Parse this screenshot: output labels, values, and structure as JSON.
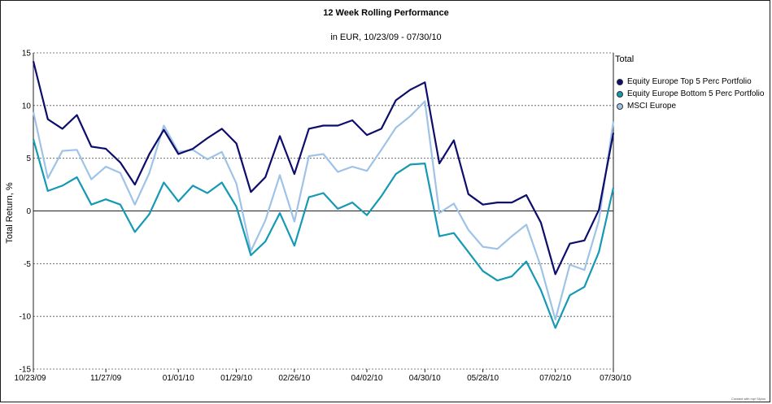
{
  "chart_data": {
    "type": "line",
    "title": "12 Week Rolling Performance",
    "subtitle": "in EUR, 10/23/09 - 07/30/10",
    "ylabel": "Total Return, %",
    "xlabel": "",
    "ylim": [
      -15,
      15
    ],
    "yticks": [
      15,
      10,
      5,
      0,
      -5,
      -10,
      -15
    ],
    "x_tick_labels": [
      "10/23/09",
      "11/27/09",
      "01/01/10",
      "01/29/10",
      "02/26/10",
      "04/02/10",
      "04/30/10",
      "05/28/10",
      "07/02/10",
      "07/30/10"
    ],
    "x_tick_index": [
      0,
      5,
      10,
      14,
      18,
      23,
      27,
      31,
      36,
      40
    ],
    "n_points": 41,
    "legend_title": "Total",
    "legend_position": "right",
    "grid": "horizontal-dotted",
    "series": [
      {
        "name": "Equity Europe Top 5 Perc Portfolio",
        "color": "#0d0d6b",
        "values": [
          14.2,
          8.7,
          7.8,
          9.1,
          6.1,
          5.9,
          4.6,
          2.5,
          5.4,
          7.7,
          5.4,
          5.9,
          6.9,
          7.8,
          6.4,
          1.8,
          3.2,
          7.1,
          3.5,
          7.8,
          8.1,
          8.1,
          8.6,
          7.2,
          7.8,
          10.5,
          11.5,
          12.2,
          4.5,
          6.7,
          1.6,
          0.6,
          0.8,
          0.8,
          1.5,
          -1.1,
          -6.0,
          -3.1,
          -2.8,
          0.1,
          7.4
        ]
      },
      {
        "name": "Equity Europe Bottom 5 Perc Portfolio",
        "color": "#1599b4",
        "values": [
          6.8,
          1.9,
          2.4,
          3.2,
          0.6,
          1.1,
          0.6,
          -2.0,
          -0.3,
          2.7,
          0.9,
          2.4,
          1.7,
          2.7,
          0.4,
          -4.2,
          -2.9,
          -0.2,
          -3.3,
          1.3,
          1.7,
          0.2,
          0.8,
          -0.4,
          1.4,
          3.5,
          4.4,
          4.5,
          -2.4,
          -2.1,
          -3.9,
          -5.7,
          -6.6,
          -6.2,
          -4.8,
          -7.5,
          -11.1,
          -8.0,
          -7.2,
          -3.9,
          2.2
        ]
      },
      {
        "name": "MSCI Europe",
        "color": "#9fc3e6",
        "values": [
          9.4,
          3.1,
          5.7,
          5.8,
          3.0,
          4.2,
          3.6,
          0.6,
          3.6,
          8.1,
          5.6,
          5.8,
          4.9,
          5.6,
          2.6,
          -3.8,
          -0.9,
          3.4,
          -1.0,
          5.2,
          5.4,
          3.7,
          4.2,
          3.8,
          5.8,
          7.9,
          9.0,
          10.4,
          -0.2,
          0.7,
          -1.8,
          -3.4,
          -3.6,
          -2.4,
          -1.3,
          -5.3,
          -10.3,
          -5.1,
          -5.6,
          -0.9,
          8.5
        ]
      }
    ]
  },
  "footer_text": "Created with mpi Stylus"
}
